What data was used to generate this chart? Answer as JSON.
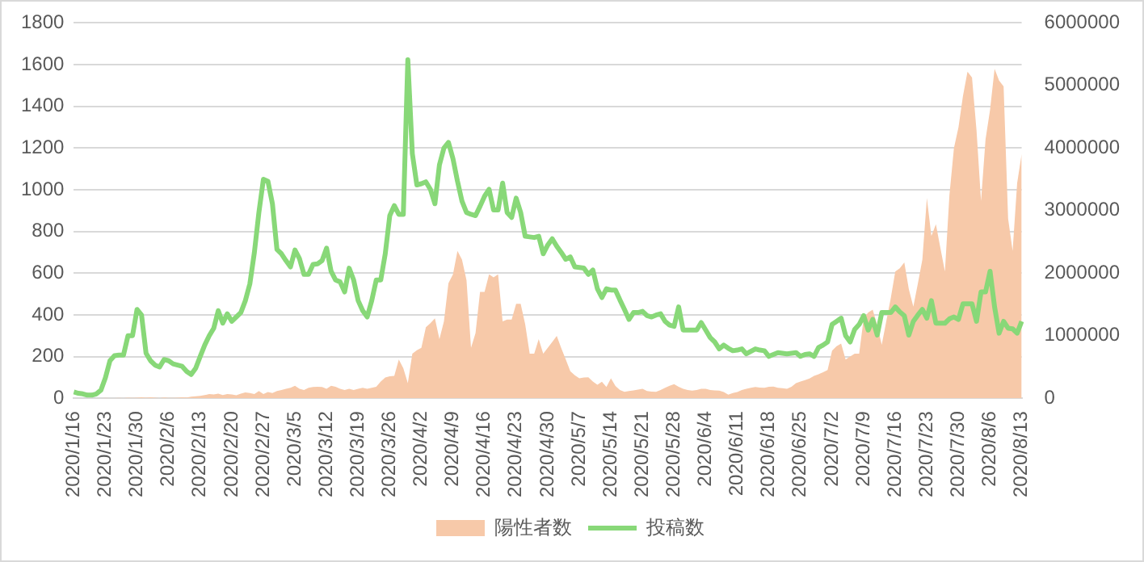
{
  "chart_data": {
    "type": "line",
    "categories": [
      "2020/1/16",
      null,
      null,
      null,
      null,
      null,
      null,
      "2020/1/23",
      null,
      null,
      null,
      null,
      null,
      null,
      "2020/1/30",
      null,
      null,
      null,
      null,
      null,
      null,
      "2020/2/6",
      null,
      null,
      null,
      null,
      null,
      null,
      "2020/2/13",
      null,
      null,
      null,
      null,
      null,
      null,
      "2020/2/20",
      null,
      null,
      null,
      null,
      null,
      null,
      "2020/2/27",
      null,
      null,
      null,
      null,
      null,
      null,
      "2020/3/5",
      null,
      null,
      null,
      null,
      null,
      null,
      "2020/3/12",
      null,
      null,
      null,
      null,
      null,
      null,
      "2020/3/19",
      null,
      null,
      null,
      null,
      null,
      null,
      "2020/3/26",
      null,
      null,
      null,
      null,
      null,
      null,
      "2020/4/2",
      null,
      null,
      null,
      null,
      null,
      null,
      "2020/4/9",
      null,
      null,
      null,
      null,
      null,
      null,
      "2020/4/16",
      null,
      null,
      null,
      null,
      null,
      null,
      "2020/4/23",
      null,
      null,
      null,
      null,
      null,
      null,
      "2020/4/30",
      null,
      null,
      null,
      null,
      null,
      null,
      "2020/5/7",
      null,
      null,
      null,
      null,
      null,
      null,
      "2020/5/14",
      null,
      null,
      null,
      null,
      null,
      null,
      "2020/5/21",
      null,
      null,
      null,
      null,
      null,
      null,
      "2020/5/28",
      null,
      null,
      null,
      null,
      null,
      null,
      "2020/6/4",
      null,
      null,
      null,
      null,
      null,
      null,
      "2020/6/11",
      null,
      null,
      null,
      null,
      null,
      null,
      "2020/6/18",
      null,
      null,
      null,
      null,
      null,
      null,
      "2020/6/25",
      null,
      null,
      null,
      null,
      null,
      null,
      "2020/7/2",
      null,
      null,
      null,
      null,
      null,
      null,
      "2020/7/9",
      null,
      null,
      null,
      null,
      null,
      null,
      "2020/7/16",
      null,
      null,
      null,
      null,
      null,
      null,
      "2020/7/23",
      null,
      null,
      null,
      null,
      null,
      null,
      "2020/7/30",
      null,
      null,
      null,
      null,
      null,
      null,
      "2020/8/6",
      null,
      null,
      null,
      null,
      null,
      null,
      "2020/8/13"
    ],
    "series": [
      {
        "name": "陽性者数",
        "type": "area",
        "color": "#f7c9a9",
        "values": [
          0,
          0,
          0,
          0,
          0,
          1,
          0,
          2,
          1,
          1,
          2,
          1,
          3,
          2,
          3,
          5,
          3,
          5,
          3,
          1,
          4,
          2,
          2,
          3,
          5,
          4,
          8,
          10,
          12,
          15,
          20,
          18,
          22,
          15,
          20,
          18,
          14,
          22,
          28,
          25,
          20,
          35,
          20,
          30,
          25,
          35,
          40,
          45,
          50,
          60,
          45,
          40,
          50,
          54,
          55,
          54,
          45,
          60,
          55,
          45,
          40,
          45,
          40,
          45,
          50,
          45,
          50,
          55,
          80,
          100,
          105,
          107,
          186,
          144,
          73,
          214,
          230,
          242,
          341,
          360,
          383,
          284,
          369,
          552,
          594,
          707,
          665,
          566,
          242,
          313,
          510,
          510,
          594,
          580,
          594,
          369,
          377,
          377,
          453,
          453,
          355,
          214,
          214,
          284,
          214,
          242,
          270,
          299,
          240,
          186,
          130,
          110,
          96,
          100,
          101,
          80,
          65,
          79,
          54,
          96,
          59,
          40,
          31,
          35,
          38,
          42,
          45,
          35,
          32,
          31,
          40,
          50,
          60,
          68,
          55,
          45,
          40,
          37,
          40,
          45,
          45,
          40,
          38,
          37,
          30,
          17,
          25,
          30,
          40,
          45,
          50,
          54,
          51,
          50,
          55,
          56,
          50,
          48,
          45,
          55,
          73,
          80,
          87,
          95,
          107,
          115,
          125,
          135,
          228,
          250,
          262,
          186,
          200,
          214,
          214,
          383,
          411,
          425,
          350,
          256,
          369,
          480,
          608,
          623,
          651,
          524,
          439,
          550,
          665,
          960,
          778,
          834,
          720,
          608,
          975,
          1200,
          1299,
          1450,
          1566,
          1538,
          1285,
          946,
          1242,
          1383,
          1580,
          1524,
          1496,
          862,
          707,
          1031,
          1172
        ]
      },
      {
        "name": "投稿数",
        "type": "line",
        "axis": "y2",
        "color": "#88d878",
        "values": [
          100000,
          80000,
          70000,
          50000,
          50000,
          70000,
          130000,
          330000,
          600000,
          680000,
          690000,
          690000,
          1000000,
          1000000,
          1420000,
          1330000,
          720000,
          600000,
          530000,
          500000,
          620000,
          600000,
          550000,
          530000,
          510000,
          430000,
          380000,
          480000,
          670000,
          850000,
          1000000,
          1120000,
          1400000,
          1200000,
          1350000,
          1230000,
          1300000,
          1370000,
          1560000,
          1830000,
          2330000,
          2970000,
          3500000,
          3470000,
          3110000,
          2380000,
          2310000,
          2200000,
          2100000,
          2370000,
          2230000,
          1980000,
          1980000,
          2140000,
          2150000,
          2200000,
          2400000,
          2030000,
          1890000,
          1860000,
          1700000,
          2080000,
          1890000,
          1560000,
          1400000,
          1300000,
          1560000,
          1890000,
          1890000,
          2310000,
          2920000,
          3080000,
          2940000,
          2940000,
          5410000,
          3910000,
          3410000,
          3430000,
          3460000,
          3340000,
          3110000,
          3730000,
          4000000,
          4090000,
          3830000,
          3470000,
          3150000,
          2970000,
          2940000,
          2920000,
          3070000,
          3230000,
          3340000,
          3010000,
          3010000,
          3440000,
          2970000,
          2890000,
          3200000,
          2970000,
          2590000,
          2580000,
          2570000,
          2590000,
          2310000,
          2450000,
          2550000,
          2430000,
          2330000,
          2220000,
          2260000,
          2100000,
          2090000,
          2080000,
          1980000,
          2050000,
          1750000,
          1610000,
          1750000,
          1730000,
          1730000,
          1570000,
          1420000,
          1260000,
          1370000,
          1370000,
          1390000,
          1320000,
          1300000,
          1330000,
          1350000,
          1230000,
          1170000,
          1150000,
          1460000,
          1090000,
          1090000,
          1090000,
          1090000,
          1210000,
          1090000,
          970000,
          900000,
          790000,
          850000,
          800000,
          760000,
          770000,
          790000,
          710000,
          750000,
          790000,
          770000,
          760000,
          670000,
          700000,
          730000,
          720000,
          710000,
          720000,
          730000,
          670000,
          700000,
          710000,
          670000,
          810000,
          850000,
          900000,
          1180000,
          1230000,
          1280000,
          1000000,
          900000,
          1100000,
          1180000,
          1320000,
          1090000,
          1260000,
          1010000,
          1370000,
          1370000,
          1370000,
          1460000,
          1380000,
          1320000,
          1010000,
          1230000,
          1330000,
          1420000,
          1280000,
          1560000,
          1200000,
          1200000,
          1200000,
          1270000,
          1300000,
          1260000,
          1510000,
          1510000,
          1510000,
          1230000,
          1700000,
          1700000,
          2030000,
          1460000,
          1040000,
          1230000,
          1120000,
          1110000,
          1040000,
          1230000
        ]
      }
    ],
    "ylim": [
      0,
      1800
    ],
    "yticks": [
      0,
      200,
      400,
      600,
      800,
      1000,
      1200,
      1400,
      1600,
      1800
    ],
    "y2lim": [
      0,
      6000000
    ],
    "y2ticks": [
      0,
      1000000,
      2000000,
      3000000,
      4000000,
      5000000,
      6000000
    ],
    "grid": "y",
    "legend": "bottom",
    "marker": "none"
  }
}
